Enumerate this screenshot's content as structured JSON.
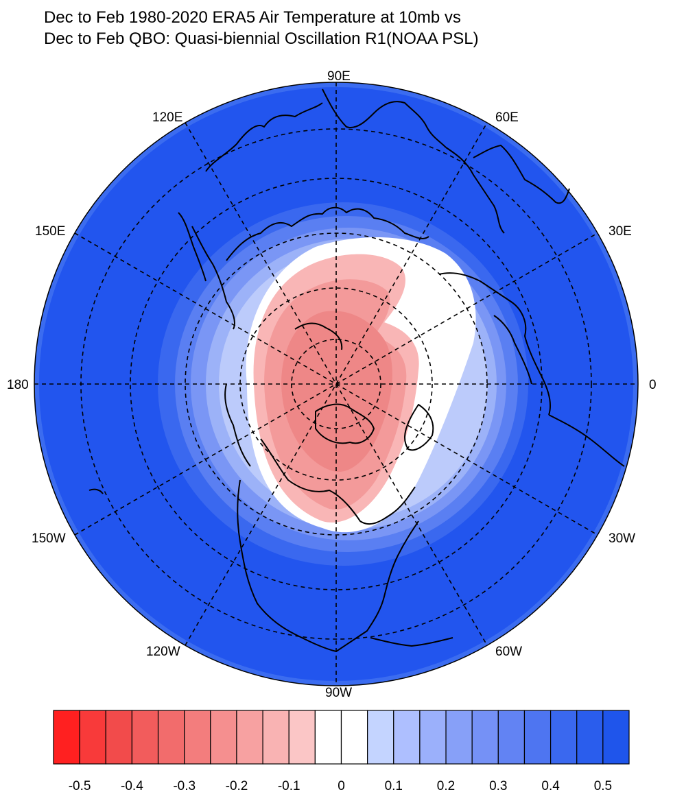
{
  "title": {
    "line1": "Dec to Feb 1980-2020 ERA5 Air Temperature at 10mb vs",
    "line2": "Dec to Feb QBO: Quasi-biennial Oscillation R1(NOAA PSL)"
  },
  "map": {
    "projection": "north-polar-stereographic",
    "longitude_labels": {
      "top": "90E",
      "upper_left": "120E",
      "upper_right": "60E",
      "left_upper": "150E",
      "right_upper": "30E",
      "left": "180",
      "right": "0",
      "left_lower": "150W",
      "right_lower": "30W",
      "lower_left": "120W",
      "lower_right": "60W",
      "bottom": "90W"
    },
    "field_summary": {
      "center_pole_value": -0.3,
      "outer_ring_value": 0.5
    },
    "colors": {
      "coastline": "#000000",
      "grid": "#000000",
      "strong_positive": "#2255ee",
      "strong_negative": "#ff2020"
    }
  },
  "colorbar": {
    "tick_labels": [
      "-0.5",
      "-0.4",
      "-0.3",
      "-0.2",
      "-0.1",
      "0",
      "0.1",
      "0.2",
      "0.3",
      "0.4",
      "0.5"
    ],
    "colors": [
      "#ff2020",
      "#f83a3a",
      "#f24b4b",
      "#f25c5c",
      "#f26c6c",
      "#f37d7d",
      "#f58f8f",
      "#f7a1a1",
      "#f9b3b3",
      "#fbc6c6",
      "#ffffff",
      "#ffffff",
      "#c4d4ff",
      "#aebfff",
      "#9bb0fb",
      "#87a0f8",
      "#7591f6",
      "#6283f3",
      "#4e75f1",
      "#3a68ef",
      "#2a5ded",
      "#1f55eb"
    ]
  }
}
